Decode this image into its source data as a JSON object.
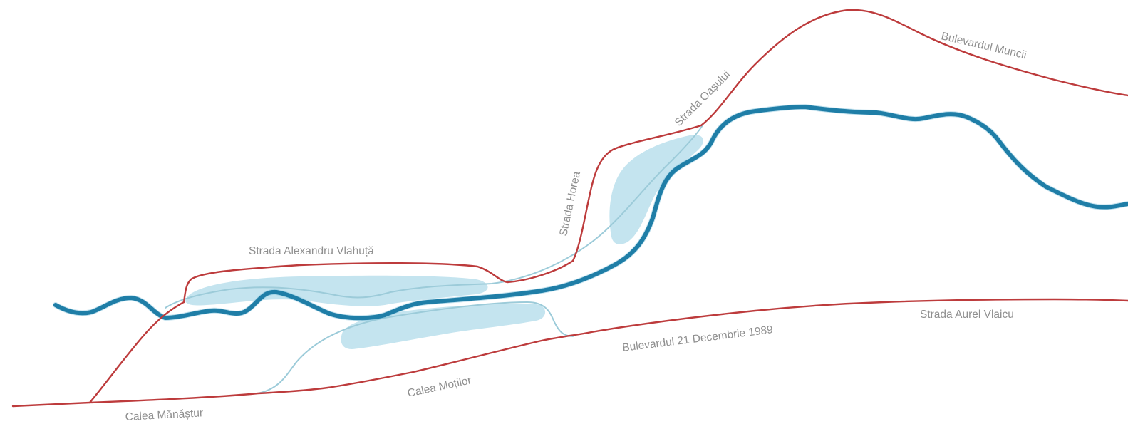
{
  "colors": {
    "road": "#bd3b3c",
    "river": "#1f7ea7",
    "river_halo": "#7fc0dc",
    "channel": "#9ccbd9",
    "lake": "#c4e4ef",
    "label": "#8f8f8f",
    "background": "#ffffff"
  },
  "labels": {
    "bulevardul_muncii": "Bulevardul Muncii",
    "strada_oasului": "Strada Oașului",
    "strada_horea": "Strada Horea",
    "strada_alexandru_vlahuta": "Strada Alexandru Vlahuță",
    "bulevardul_21_decembrie": "Bulevardul 21 Decembrie 1989",
    "strada_aurel_vlaicu": "Strada Aurel Vlaicu",
    "calea_motilor": "Calea Moților",
    "calea_manastur": "Calea Mănăștur"
  }
}
